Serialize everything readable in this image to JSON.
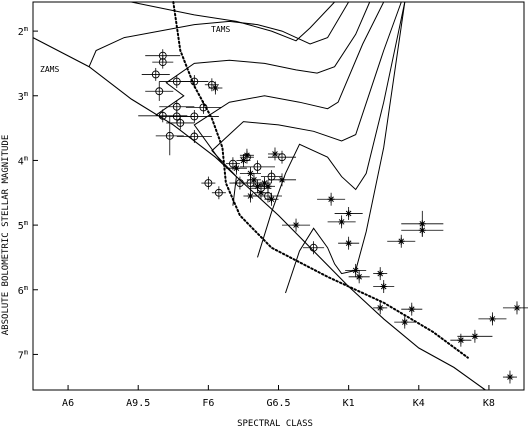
{
  "chart_data": {
    "type": "scatter",
    "title": "",
    "xlabel": "SPECTRAL CLASS",
    "ylabel": "ABSOLUTE BOLOMETRIC STELLAR MAGNITUDE",
    "x_tick_labels": [
      "A6",
      "A9.5",
      "F6",
      "G6.5",
      "K1",
      "K4",
      "K8"
    ],
    "x_ticks_at": [
      0.5,
      1.5,
      2.5,
      3.5,
      4.5,
      5.5,
      6.5
    ],
    "xlim": [
      0,
      7
    ],
    "y_tick_labels": [
      "2m",
      "3m",
      "4m",
      "5m",
      "6m",
      "7m"
    ],
    "y_ticks_at": [
      2,
      3,
      4,
      5,
      6,
      7
    ],
    "ylim": [
      1.55,
      7.55
    ],
    "y_inverted": true,
    "curve_labels": {
      "zams": "ZAMS",
      "tams": "TAMS"
    },
    "zams": [
      [
        0,
        2.1
      ],
      [
        0.8,
        2.55
      ],
      [
        1.4,
        3.05
      ],
      [
        2.0,
        3.45
      ],
      [
        2.6,
        3.95
      ],
      [
        3.0,
        4.35
      ],
      [
        3.5,
        4.85
      ],
      [
        4.0,
        5.4
      ],
      [
        4.5,
        5.95
      ],
      [
        5.0,
        6.45
      ],
      [
        5.5,
        6.9
      ],
      [
        6.0,
        7.2
      ],
      [
        6.45,
        7.55
      ]
    ],
    "tams": [
      [
        2.0,
        1.55
      ],
      [
        2.1,
        2.3
      ],
      [
        2.3,
        2.85
      ],
      [
        2.55,
        3.35
      ],
      [
        2.7,
        3.8
      ],
      [
        2.75,
        4.35
      ],
      [
        2.95,
        4.85
      ],
      [
        3.4,
        5.35
      ],
      [
        4.2,
        5.8
      ],
      [
        5.0,
        6.2
      ],
      [
        5.7,
        6.65
      ],
      [
        6.2,
        7.05
      ]
    ],
    "tracks": [
      [
        [
          3.6,
          6.05
        ],
        [
          3.8,
          5.4
        ],
        [
          4.0,
          5.05
        ],
        [
          4.2,
          5.35
        ],
        [
          4.3,
          5.6
        ],
        [
          4.4,
          5.75
        ],
        [
          4.6,
          5.7
        ],
        [
          4.75,
          5.1
        ],
        [
          5.0,
          3.8
        ],
        [
          5.3,
          1.55
        ]
      ],
      [
        [
          3.2,
          5.5
        ],
        [
          3.4,
          4.8
        ],
        [
          3.6,
          4.2
        ],
        [
          3.8,
          3.75
        ],
        [
          4.2,
          3.95
        ],
        [
          4.4,
          4.25
        ],
        [
          4.6,
          4.45
        ],
        [
          4.75,
          4.2
        ],
        [
          5.0,
          3.1
        ],
        [
          5.3,
          1.55
        ]
      ],
      [
        [
          2.85,
          4.7
        ],
        [
          2.9,
          4.25
        ],
        [
          2.55,
          3.85
        ],
        [
          3.0,
          3.4
        ],
        [
          3.5,
          3.45
        ],
        [
          4.0,
          3.55
        ],
        [
          4.4,
          3.7
        ],
        [
          4.6,
          3.6
        ],
        [
          5.0,
          2.3
        ],
        [
          5.25,
          1.55
        ]
      ],
      [
        [
          2.7,
          4.05
        ],
        [
          2.3,
          3.45
        ],
        [
          2.8,
          3.1
        ],
        [
          3.3,
          3.0
        ],
        [
          3.8,
          3.1
        ],
        [
          4.2,
          3.2
        ],
        [
          4.35,
          3.1
        ],
        [
          4.7,
          2.2
        ],
        [
          5.0,
          1.55
        ]
      ],
      [
        [
          1.75,
          3.3
        ],
        [
          2.15,
          3.0
        ],
        [
          1.9,
          2.8
        ],
        [
          2.3,
          2.5
        ],
        [
          2.8,
          2.45
        ],
        [
          3.3,
          2.5
        ],
        [
          3.75,
          2.6
        ],
        [
          4.05,
          2.65
        ],
        [
          4.3,
          2.55
        ],
        [
          4.6,
          2.05
        ],
        [
          4.8,
          1.55
        ]
      ],
      [
        [
          0.8,
          2.55
        ],
        [
          0.9,
          2.3
        ],
        [
          1.3,
          2.1
        ],
        [
          1.8,
          2.0
        ],
        [
          2.3,
          1.9
        ],
        [
          2.8,
          1.85
        ],
        [
          3.2,
          1.9
        ],
        [
          3.55,
          2.0
        ],
        [
          3.95,
          2.2
        ],
        [
          4.2,
          2.1
        ],
        [
          4.5,
          1.55
        ]
      ],
      [
        [
          1.4,
          1.55
        ],
        [
          2.3,
          1.75
        ],
        [
          2.9,
          1.85
        ],
        [
          3.4,
          2.0
        ],
        [
          3.75,
          2.15
        ],
        [
          3.95,
          1.95
        ],
        [
          4.3,
          1.55
        ]
      ]
    ],
    "series": [
      {
        "name": "",
        "marker": "circle",
        "points": [
          [
            1.85,
            2.38,
            0.25,
            0.1
          ],
          [
            1.85,
            2.48,
            0.15,
            0.1
          ],
          [
            1.75,
            2.67,
            0.2,
            0.1
          ],
          [
            1.8,
            2.93,
            0.2,
            0.15
          ],
          [
            2.05,
            2.78,
            0.25,
            0.1
          ],
          [
            2.3,
            2.78,
            0.2,
            0.1
          ],
          [
            2.55,
            2.83,
            0.1,
            0.1
          ],
          [
            2.05,
            3.17,
            0.25,
            0.1
          ],
          [
            2.43,
            3.18,
            0.25,
            0.1
          ],
          [
            1.85,
            3.31,
            0.35,
            0.1
          ],
          [
            2.05,
            3.32,
            0.25,
            0.1
          ],
          [
            2.3,
            3.32,
            0.35,
            0.1
          ],
          [
            2.1,
            3.42,
            0.2,
            0.1
          ],
          [
            1.95,
            3.62,
            0.2,
            0.3
          ],
          [
            2.3,
            3.63,
            0.25,
            0.1
          ],
          [
            2.5,
            4.35,
            0.1,
            0.1
          ],
          [
            2.65,
            4.5,
            0.1,
            0.1
          ],
          [
            2.85,
            4.05,
            0.1,
            0.1
          ],
          [
            3.2,
            4.1,
            0.25,
            0.1
          ],
          [
            3.05,
            3.95,
            0.1,
            0.1
          ],
          [
            3.55,
            3.95,
            0.2,
            0.1
          ],
          [
            3.4,
            4.25,
            0.15,
            0.1
          ],
          [
            3.1,
            4.35,
            0.25,
            0.1
          ],
          [
            3.25,
            4.43,
            0.15,
            0.1
          ],
          [
            3.35,
            4.55,
            0.2,
            0.1
          ],
          [
            4.0,
            5.35,
            0.15,
            0.1
          ],
          [
            2.95,
            4.35,
            0.15,
            0.1
          ]
        ]
      },
      {
        "name": "",
        "marker": "star",
        "points": [
          [
            2.6,
            2.88,
            0.1,
            0.1
          ],
          [
            3.05,
            3.92,
            0.1,
            0.1
          ],
          [
            3.0,
            4.0,
            0.1,
            0.1
          ],
          [
            2.9,
            4.12,
            0.15,
            0.1
          ],
          [
            3.1,
            4.2,
            0.15,
            0.1
          ],
          [
            3.15,
            4.3,
            0.1,
            0.1
          ],
          [
            3.3,
            4.35,
            0.1,
            0.1
          ],
          [
            3.35,
            4.4,
            0.1,
            0.1
          ],
          [
            3.2,
            4.4,
            0.1,
            0.1
          ],
          [
            3.25,
            4.5,
            0.1,
            0.1
          ],
          [
            3.4,
            4.6,
            0.1,
            0.1
          ],
          [
            3.1,
            4.55,
            0.1,
            0.1
          ],
          [
            3.55,
            4.3,
            0.2,
            0.1
          ],
          [
            3.45,
            3.9,
            0.1,
            0.1
          ],
          [
            3.75,
            5.0,
            0.2,
            0.1
          ],
          [
            4.25,
            4.6,
            0.2,
            0.1
          ],
          [
            4.4,
            4.95,
            0.2,
            0.1
          ],
          [
            4.5,
            4.82,
            0.2,
            0.1
          ],
          [
            4.5,
            5.28,
            0.15,
            0.1
          ],
          [
            4.6,
            5.7,
            0.15,
            0.1
          ],
          [
            4.65,
            5.8,
            0.15,
            0.1
          ],
          [
            4.95,
            5.75,
            0.1,
            0.1
          ],
          [
            5.0,
            5.95,
            0.15,
            0.1
          ],
          [
            5.25,
            5.25,
            0.2,
            0.1
          ],
          [
            5.55,
            4.98,
            0.3,
            0.2
          ],
          [
            5.55,
            5.08,
            0.3,
            0.1
          ],
          [
            5.4,
            6.3,
            0.15,
            0.1
          ],
          [
            5.3,
            6.5,
            0.15,
            0.1
          ],
          [
            4.95,
            6.28,
            0.1,
            0.1
          ],
          [
            6.1,
            6.78,
            0.15,
            0.1
          ],
          [
            6.3,
            6.72,
            0.25,
            0.1
          ],
          [
            6.55,
            6.45,
            0.2,
            0.1
          ],
          [
            6.9,
            6.28,
            0.2,
            0.1
          ],
          [
            6.8,
            7.35,
            0.1,
            0.1
          ]
        ]
      }
    ]
  }
}
